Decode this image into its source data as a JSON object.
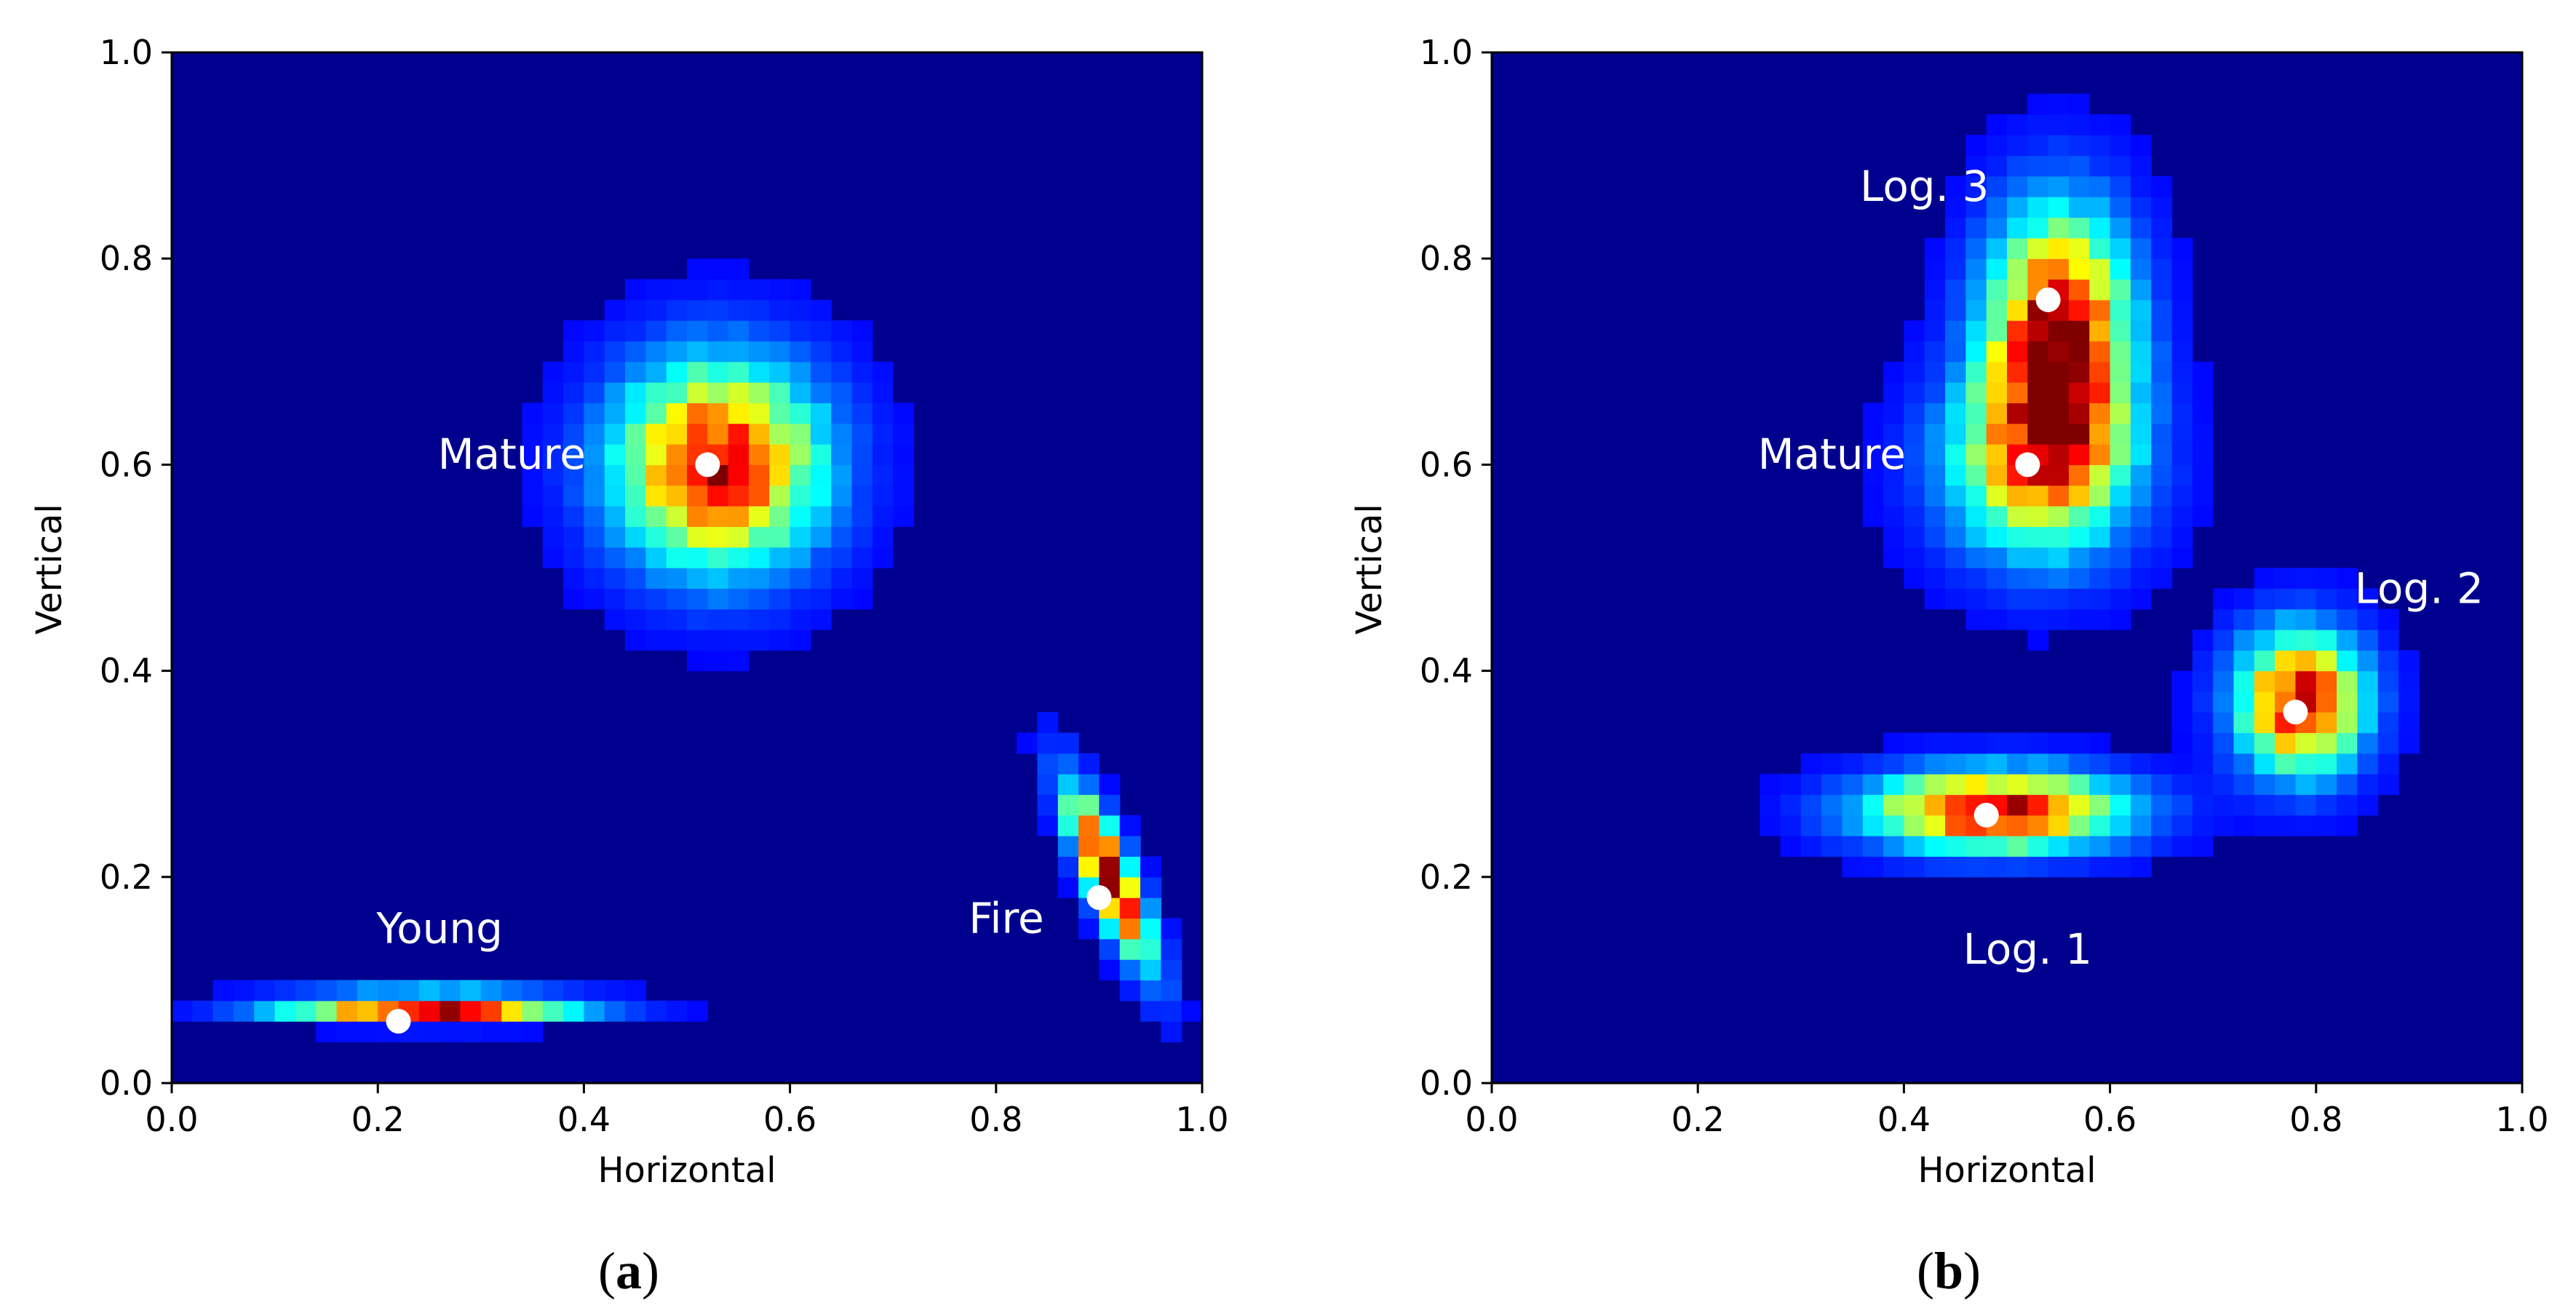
{
  "chart_data": [
    {
      "type": "heatmap",
      "panel": "a",
      "caption": {
        "open": "(",
        "letter": "a",
        "close": ")"
      },
      "xlabel": "Horizontal",
      "ylabel": "Vertical",
      "xlim": [
        0.0,
        1.0
      ],
      "ylim": [
        0.0,
        1.0
      ],
      "xticks": [
        "0.0",
        "0.2",
        "0.4",
        "0.6",
        "0.8",
        "1.0"
      ],
      "yticks": [
        "0.0",
        "0.2",
        "0.4",
        "0.6",
        "0.8",
        "1.0"
      ],
      "colormap": "jet",
      "background_color": "#00008f",
      "grid_bins": 50,
      "clusters": [
        {
          "name": "Young",
          "cx": 0.25,
          "cy": 0.074,
          "sx": 0.09,
          "sy": 0.009,
          "peak": 1.0
        },
        {
          "name": "Mature",
          "cx": 0.53,
          "cy": 0.6,
          "sx": 0.065,
          "sy": 0.065,
          "peak": 0.92
        },
        {
          "name": "Fire",
          "cx": 0.91,
          "cy": 0.2,
          "sx": 0.028,
          "sy": 0.06,
          "peak": 1.0,
          "slope": -2.3
        }
      ],
      "centers": [
        {
          "label": "Young",
          "x": 0.22,
          "y": 0.06,
          "label_x": 0.26,
          "label_y": 0.15
        },
        {
          "label": "Mature",
          "x": 0.52,
          "y": 0.6,
          "label_x": 0.33,
          "label_y": 0.61
        },
        {
          "label": "Fire",
          "x": 0.9,
          "y": 0.18,
          "label_x": 0.81,
          "label_y": 0.16
        }
      ]
    },
    {
      "type": "heatmap",
      "panel": "b",
      "caption": {
        "open": "(",
        "letter": "b",
        "close": ")"
      },
      "xlabel": "Horizontal",
      "ylabel": "Vertical",
      "xlim": [
        0.0,
        1.0
      ],
      "ylim": [
        0.0,
        1.0
      ],
      "xticks": [
        "0.0",
        "0.2",
        "0.4",
        "0.6",
        "0.8",
        "1.0"
      ],
      "yticks": [
        "0.0",
        "0.2",
        "0.4",
        "0.6",
        "0.8",
        "1.0"
      ],
      "colormap": "jet",
      "background_color": "#00008f",
      "grid_bins": 50,
      "clusters": [
        {
          "name": "Log. 3",
          "cx": 0.55,
          "cy": 0.72,
          "sx": 0.045,
          "sy": 0.08,
          "peak": 1.0
        },
        {
          "name": "Mature",
          "cx": 0.53,
          "cy": 0.6,
          "sx": 0.06,
          "sy": 0.06,
          "peak": 0.6
        },
        {
          "name": "Log. 2",
          "cx": 0.785,
          "cy": 0.37,
          "sx": 0.04,
          "sy": 0.045,
          "peak": 0.9
        },
        {
          "name": "Log. 1",
          "cx": 0.49,
          "cy": 0.265,
          "sx": 0.08,
          "sy": 0.025,
          "peak": 0.95
        }
      ],
      "centers": [
        {
          "label": "Log. 3",
          "x": 0.54,
          "y": 0.76,
          "label_x": 0.42,
          "label_y": 0.87
        },
        {
          "label": "Mature",
          "x": 0.52,
          "y": 0.6,
          "label_x": 0.33,
          "label_y": 0.61
        },
        {
          "label": "Log. 2",
          "x": 0.78,
          "y": 0.36,
          "label_x": 0.9,
          "label_y": 0.48
        },
        {
          "label": "Log. 1",
          "x": 0.48,
          "y": 0.26,
          "label_x": 0.52,
          "label_y": 0.13
        }
      ]
    }
  ]
}
